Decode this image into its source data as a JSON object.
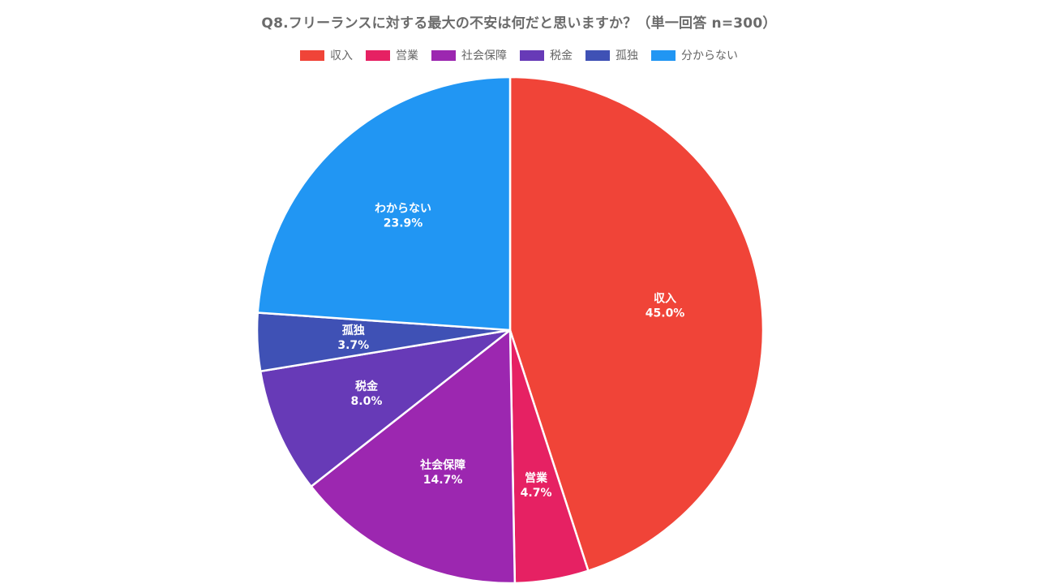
{
  "chart_data": {
    "type": "pie",
    "title": "Q8.フリーランスに対する最大の不安は何だと思いますか？（単一回答 n=300）",
    "legend_position": "top",
    "slices": [
      {
        "legend": "収入",
        "label": "収入",
        "value": 45.0,
        "value_label": "45.0%",
        "color": "#f04438"
      },
      {
        "legend": "営業",
        "label": "営業",
        "value": 4.7,
        "value_label": "4.7%",
        "color": "#e62163"
      },
      {
        "legend": "社会保障",
        "label": "社会保障",
        "value": 14.7,
        "value_label": "14.7%",
        "color": "#9c27b0"
      },
      {
        "legend": "税金",
        "label": "税金",
        "value": 8.0,
        "value_label": "8.0%",
        "color": "#673ab7"
      },
      {
        "legend": "孤独",
        "label": "孤独",
        "value": 3.7,
        "value_label": "3.7%",
        "color": "#3f51b5"
      },
      {
        "legend": "分からない",
        "label": "わからない",
        "value": 23.9,
        "value_label": "23.9%",
        "color": "#2196f3"
      }
    ]
  }
}
